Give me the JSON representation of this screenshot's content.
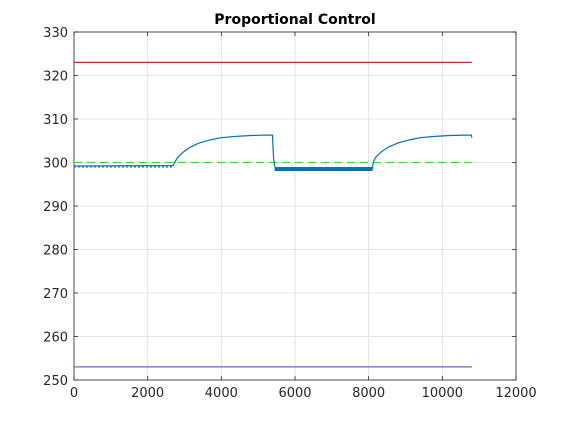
{
  "chart_data": {
    "type": "line",
    "title": "Proportional Control",
    "xlabel": "",
    "ylabel": "",
    "xlim": [
      0,
      12000
    ],
    "ylim": [
      250,
      330
    ],
    "xticks": [
      0,
      2000,
      4000,
      6000,
      8000,
      10000,
      12000
    ],
    "yticks": [
      250,
      260,
      270,
      280,
      290,
      300,
      310,
      320,
      330
    ],
    "grid": true,
    "legend": "none",
    "series": [
      {
        "color": "#d62728",
        "style": "solid",
        "x": [
          0,
          10800
        ],
        "y": [
          323,
          323
        ]
      },
      {
        "color": "#6666cc",
        "style": "solid",
        "x": [
          0,
          10800
        ],
        "y": [
          253,
          253
        ]
      },
      {
        "color": "#33dd33",
        "style": "dashed",
        "x": [
          0,
          10800
        ],
        "y": [
          300,
          300
        ]
      },
      {
        "color": "#0072bd",
        "style": "solid",
        "x": [
          0,
          2700,
          2720,
          2800,
          2950,
          3150,
          3400,
          3700,
          4000,
          4400,
          4800,
          5200,
          5390,
          5400,
          5420,
          5440,
          5460,
          5480,
          5500,
          6000,
          7000,
          8000,
          8100,
          8110,
          8130,
          8200,
          8350,
          8550,
          8800,
          9100,
          9400,
          9800,
          10200,
          10600,
          10790,
          10800
        ],
        "y": [
          299.2,
          299.3,
          299.8,
          301.0,
          302.3,
          303.5,
          304.5,
          305.2,
          305.7,
          306.0,
          306.2,
          306.3,
          306.3,
          304.0,
          301.0,
          299.5,
          298.9,
          298.6,
          298.5,
          298.5,
          298.5,
          298.5,
          298.5,
          299.3,
          300.2,
          301.3,
          302.5,
          303.6,
          304.5,
          305.2,
          305.7,
          306.0,
          306.2,
          306.3,
          306.3,
          305.7
        ]
      },
      {
        "color": "#0072bd",
        "style": "bold",
        "x": [
          5450,
          8100
        ],
        "y": [
          298.5,
          298.5
        ]
      },
      {
        "color": "#2e7fd6",
        "style": "dotted",
        "x": [
          0,
          2700
        ],
        "y": [
          299.0,
          299.0
        ]
      }
    ]
  }
}
